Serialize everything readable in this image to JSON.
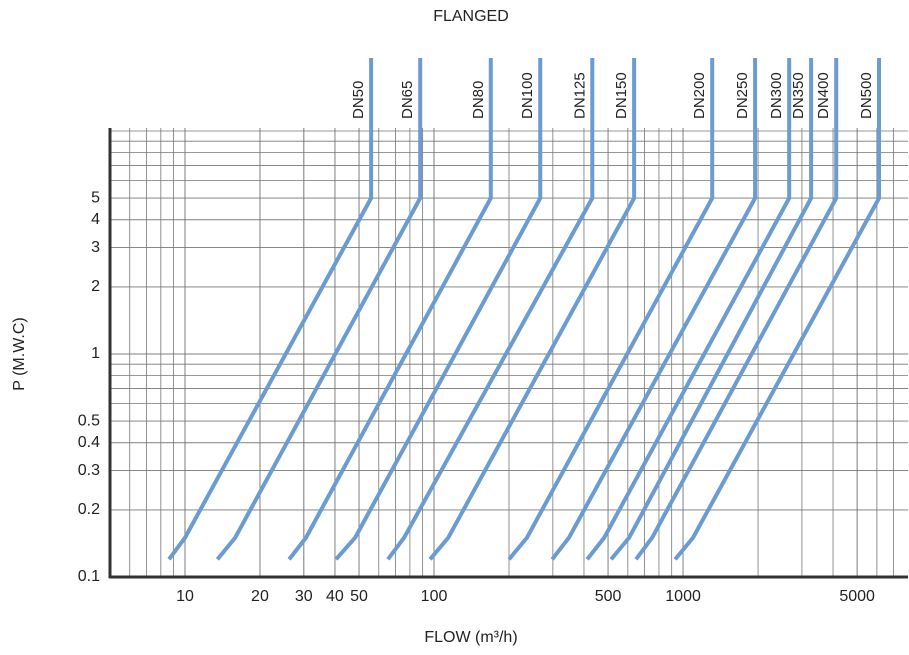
{
  "chart_data": {
    "type": "line",
    "title": "FLANGED",
    "xlabel": "FLOW (m³/h)",
    "ylabel": "P (M.W.C)",
    "xscale": "log",
    "yscale": "log",
    "grid": true,
    "xlim": [
      5,
      8000
    ],
    "ylim": [
      0.1,
      10
    ],
    "xticks": [
      10,
      20,
      30,
      40,
      50,
      100,
      500,
      1000,
      5000
    ],
    "yticks": [
      0.1,
      0.2,
      0.3,
      0.4,
      0.5,
      1,
      2,
      3,
      4,
      5
    ],
    "series": [
      {
        "name": "DN50",
        "color": "#6a9bd1",
        "x": [
          8.63,
          10.0,
          55.9
        ],
        "values": [
          0.12,
          0.15,
          5
        ]
      },
      {
        "name": "DN65",
        "color": "#6a9bd1",
        "x": [
          13.5,
          15.9,
          88
        ],
        "values": [
          0.12,
          0.15,
          5
        ]
      },
      {
        "name": "DN80",
        "color": "#6a9bd1",
        "x": [
          26.2,
          30.6,
          169
        ],
        "values": [
          0.12,
          0.15,
          5
        ]
      },
      {
        "name": "DN100",
        "color": "#6a9bd1",
        "x": [
          40.4,
          48.2,
          267
        ],
        "values": [
          0.12,
          0.15,
          5
        ]
      },
      {
        "name": "DN125",
        "color": "#6a9bd1",
        "x": [
          65.3,
          75.8,
          432
        ],
        "values": [
          0.12,
          0.15,
          5
        ]
      },
      {
        "name": "DN150",
        "color": "#6a9bd1",
        "x": [
          96.4,
          114,
          636
        ],
        "values": [
          0.12,
          0.15,
          5
        ]
      },
      {
        "name": "DN200",
        "color": "#6a9bd1",
        "x": [
          200,
          236,
          1309
        ],
        "values": [
          0.12,
          0.15,
          5
        ]
      },
      {
        "name": "DN250",
        "color": "#6a9bd1",
        "x": [
          298,
          348,
          1946
        ],
        "values": [
          0.12,
          0.15,
          5
        ]
      },
      {
        "name": "DN300",
        "color": "#6a9bd1",
        "x": [
          412,
          482,
          2667
        ],
        "values": [
          0.12,
          0.15,
          5
        ]
      },
      {
        "name": "DN350",
        "color": "#6a9bd1",
        "x": [
          514,
          607,
          3266
        ],
        "values": [
          0.12,
          0.15,
          5
        ]
      },
      {
        "name": "DN400",
        "color": "#6a9bd1",
        "x": [
          647,
          751,
          4120
        ],
        "values": [
          0.12,
          0.15,
          5
        ]
      },
      {
        "name": "DN500",
        "color": "#6a9bd1",
        "x": [
          929,
          1096,
          6120
        ],
        "values": [
          0.12,
          0.15,
          5
        ]
      }
    ]
  }
}
